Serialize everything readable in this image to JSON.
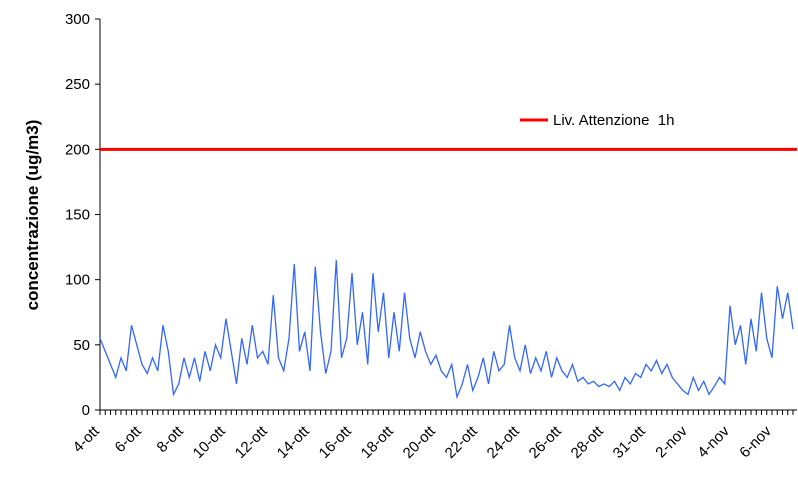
{
  "chart_data": {
    "type": "line",
    "y_label": "concentrazione (ug/m3)",
    "categories": [
      "4-ott",
      null,
      null,
      null,
      null,
      null,
      null,
      null,
      "6-ott",
      null,
      null,
      null,
      null,
      null,
      null,
      null,
      "8-ott",
      null,
      null,
      null,
      null,
      null,
      null,
      null,
      "10-ott",
      null,
      null,
      null,
      null,
      null,
      null,
      null,
      "12-ott",
      null,
      null,
      null,
      null,
      null,
      null,
      null,
      "14-ott",
      null,
      null,
      null,
      null,
      null,
      null,
      null,
      "16-ott",
      null,
      null,
      null,
      null,
      null,
      null,
      null,
      "18-ott",
      null,
      null,
      null,
      null,
      null,
      null,
      null,
      "20-ott",
      null,
      null,
      null,
      null,
      null,
      null,
      null,
      "22-ott",
      null,
      null,
      null,
      null,
      null,
      null,
      null,
      "24-ott",
      null,
      null,
      null,
      null,
      null,
      null,
      null,
      "26-ott",
      null,
      null,
      null,
      null,
      null,
      null,
      null,
      "28-ott",
      null,
      null,
      null,
      null,
      null,
      null,
      null,
      "31-ott",
      null,
      null,
      null,
      null,
      null,
      null,
      null,
      "2-nov",
      null,
      null,
      null,
      null,
      null,
      null,
      null,
      "4-nov",
      null,
      null,
      null,
      null,
      null,
      null,
      null,
      "6-nov",
      null,
      null,
      null,
      null
    ],
    "series": [
      {
        "color": "#3366ff",
        "values": [
          55,
          45,
          35,
          25,
          40,
          30,
          65,
          50,
          35,
          28,
          40,
          30,
          65,
          45,
          12,
          20,
          40,
          25,
          40,
          22,
          45,
          30,
          50,
          40,
          70,
          45,
          20,
          55,
          35,
          65,
          40,
          45,
          35,
          88,
          40,
          30,
          55,
          112,
          45,
          60,
          30,
          110,
          60,
          28,
          45,
          115,
          40,
          55,
          105,
          50,
          75,
          35,
          105,
          60,
          90,
          40,
          75,
          45,
          90,
          55,
          40,
          60,
          45,
          35,
          42,
          30,
          25,
          35,
          10,
          20,
          35,
          15,
          25,
          40,
          20,
          45,
          30,
          35,
          65,
          40,
          30,
          50,
          28,
          40,
          30,
          45,
          25,
          40,
          30,
          25,
          35,
          22,
          25,
          20,
          22,
          18,
          20,
          18,
          22,
          15,
          25,
          20,
          28,
          25,
          35,
          30,
          38,
          28,
          35,
          25,
          20,
          15,
          12,
          25,
          15,
          22,
          12,
          18,
          25,
          20,
          80,
          50,
          65,
          35,
          70,
          45,
          90,
          55,
          40,
          95,
          70,
          90,
          62
        ]
      }
    ],
    "threshold": {
      "name": "Liv. Attenzione  1h",
      "value": 200,
      "color": "#ff0000"
    },
    "ylim": [
      0,
      300
    ],
    "yticks": [
      0,
      50,
      100,
      150,
      200,
      250,
      300
    ],
    "grid": false
  }
}
